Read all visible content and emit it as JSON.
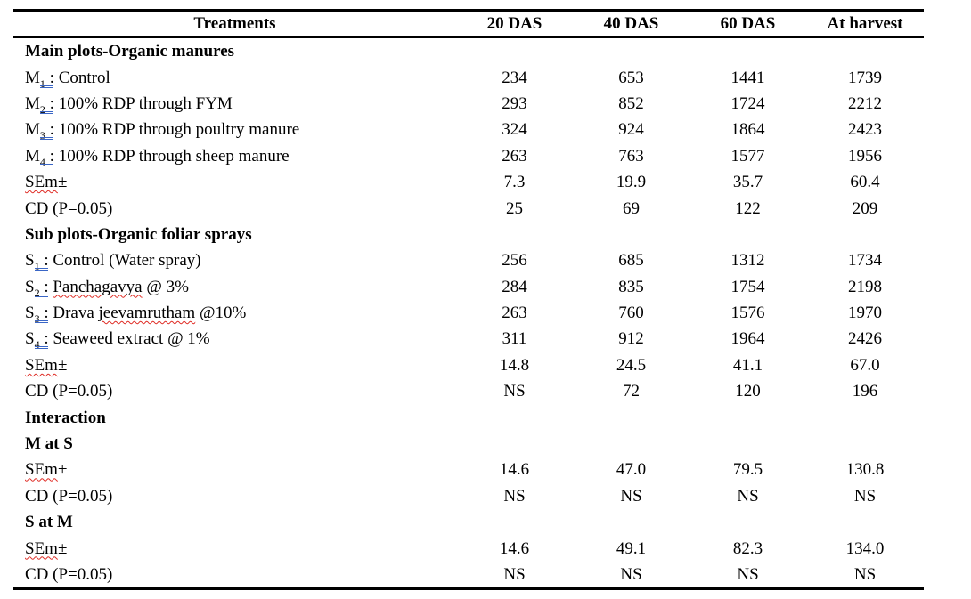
{
  "colors": {
    "grammar_underline": "#3a66c6",
    "spell_underline": "#df2a23",
    "text": "#000000",
    "rule": "#000000"
  },
  "table": {
    "columns": [
      "Treatments",
      "20 DAS",
      "40 DAS",
      "60 DAS",
      "At harvest"
    ],
    "rows": [
      {
        "kind": "section",
        "runs": [
          {
            "k": "t",
            "text": "Main plots-Organic manures"
          }
        ],
        "values": []
      },
      {
        "kind": "data",
        "runs": [
          {
            "k": "t",
            "text": "M"
          },
          {
            "k": "subcolon",
            "digit": "1",
            "tail": " :"
          },
          {
            "k": "t",
            "text": " Control"
          }
        ],
        "values": [
          "234",
          "653",
          "1441",
          "1739"
        ]
      },
      {
        "kind": "data",
        "runs": [
          {
            "k": "t",
            "text": "M"
          },
          {
            "k": "subcolon",
            "digit": "2",
            "tail": " :"
          },
          {
            "k": "t",
            "text": " 100% RDP through FYM"
          }
        ],
        "values": [
          "293",
          "852",
          "1724",
          "2212"
        ]
      },
      {
        "kind": "data",
        "runs": [
          {
            "k": "t",
            "text": "M"
          },
          {
            "k": "subcolon",
            "digit": "3",
            "tail": " :"
          },
          {
            "k": "t",
            "text": " 100% RDP through poultry manure"
          }
        ],
        "values": [
          "324",
          "924",
          "1864",
          "2423"
        ]
      },
      {
        "kind": "data",
        "runs": [
          {
            "k": "t",
            "text": "M"
          },
          {
            "k": "subcolon",
            "digit": "4",
            "tail": " :"
          },
          {
            "k": "t",
            "text": " 100% RDP through sheep manure"
          }
        ],
        "values": [
          "263",
          "763",
          "1577",
          "1956"
        ]
      },
      {
        "kind": "data",
        "runs": [
          {
            "k": "misspell",
            "text": "SEm"
          },
          {
            "k": "t",
            "text": "±"
          }
        ],
        "values": [
          "7.3",
          "19.9",
          "35.7",
          "60.4"
        ]
      },
      {
        "kind": "data",
        "runs": [
          {
            "k": "t",
            "text": "CD (P=0.05)"
          }
        ],
        "values": [
          "25",
          "69",
          "122",
          "209"
        ]
      },
      {
        "kind": "section",
        "runs": [
          {
            "k": "t",
            "text": "Sub plots-Organic foliar sprays"
          }
        ],
        "values": []
      },
      {
        "kind": "data",
        "runs": [
          {
            "k": "t",
            "text": "S"
          },
          {
            "k": "subcolon",
            "digit": "1",
            "tail": " :"
          },
          {
            "k": "t",
            "text": " Control (Water spray)"
          }
        ],
        "values": [
          "256",
          "685",
          "1312",
          "1734"
        ]
      },
      {
        "kind": "data",
        "runs": [
          {
            "k": "t",
            "text": "S"
          },
          {
            "k": "subcolon",
            "digit": "2",
            "tail": " :"
          },
          {
            "k": "t",
            "text": " "
          },
          {
            "k": "misspell",
            "text": "Panchagavya"
          },
          {
            "k": "t",
            "text": " @ 3%"
          }
        ],
        "values": [
          "284",
          "835",
          "1754",
          "2198"
        ]
      },
      {
        "kind": "data",
        "runs": [
          {
            "k": "t",
            "text": "S"
          },
          {
            "k": "subcolon",
            "digit": "3",
            "tail": " :"
          },
          {
            "k": "t",
            "text": " Drava "
          },
          {
            "k": "misspell",
            "text": "jeevamrutham"
          },
          {
            "k": "t",
            "text": " @10%"
          }
        ],
        "values": [
          "263",
          "760",
          "1576",
          "1970"
        ]
      },
      {
        "kind": "data",
        "runs": [
          {
            "k": "t",
            "text": "S"
          },
          {
            "k": "subcolon",
            "digit": "4",
            "tail": " :"
          },
          {
            "k": "t",
            "text": " Seaweed extract @ 1%"
          }
        ],
        "values": [
          "311",
          "912",
          "1964",
          "2426"
        ]
      },
      {
        "kind": "data",
        "runs": [
          {
            "k": "misspell",
            "text": "SEm"
          },
          {
            "k": "t",
            "text": "±"
          }
        ],
        "values": [
          "14.8",
          "24.5",
          "41.1",
          "67.0"
        ]
      },
      {
        "kind": "data",
        "runs": [
          {
            "k": "t",
            "text": "CD (P=0.05)"
          }
        ],
        "values": [
          "NS",
          "72",
          "120",
          "196"
        ]
      },
      {
        "kind": "section",
        "runs": [
          {
            "k": "t",
            "text": "Interaction"
          }
        ],
        "values": []
      },
      {
        "kind": "section",
        "runs": [
          {
            "k": "t",
            "text": "M at S"
          }
        ],
        "values": []
      },
      {
        "kind": "data",
        "runs": [
          {
            "k": "misspell",
            "text": "SEm"
          },
          {
            "k": "t",
            "text": "±"
          }
        ],
        "values": [
          "14.6",
          "47.0",
          "79.5",
          "130.8"
        ]
      },
      {
        "kind": "data",
        "runs": [
          {
            "k": "t",
            "text": "CD (P=0.05)"
          }
        ],
        "values": [
          "NS",
          "NS",
          "NS",
          "NS"
        ]
      },
      {
        "kind": "section",
        "runs": [
          {
            "k": "t",
            "text": "S at M"
          }
        ],
        "values": []
      },
      {
        "kind": "data",
        "runs": [
          {
            "k": "misspell",
            "text": "SEm"
          },
          {
            "k": "t",
            "text": "±"
          }
        ],
        "values": [
          "14.6",
          "49.1",
          "82.3",
          "134.0"
        ]
      },
      {
        "kind": "data",
        "runs": [
          {
            "k": "t",
            "text": "CD (P=0.05)"
          }
        ],
        "values": [
          "NS",
          "NS",
          "NS",
          "NS"
        ]
      }
    ]
  }
}
